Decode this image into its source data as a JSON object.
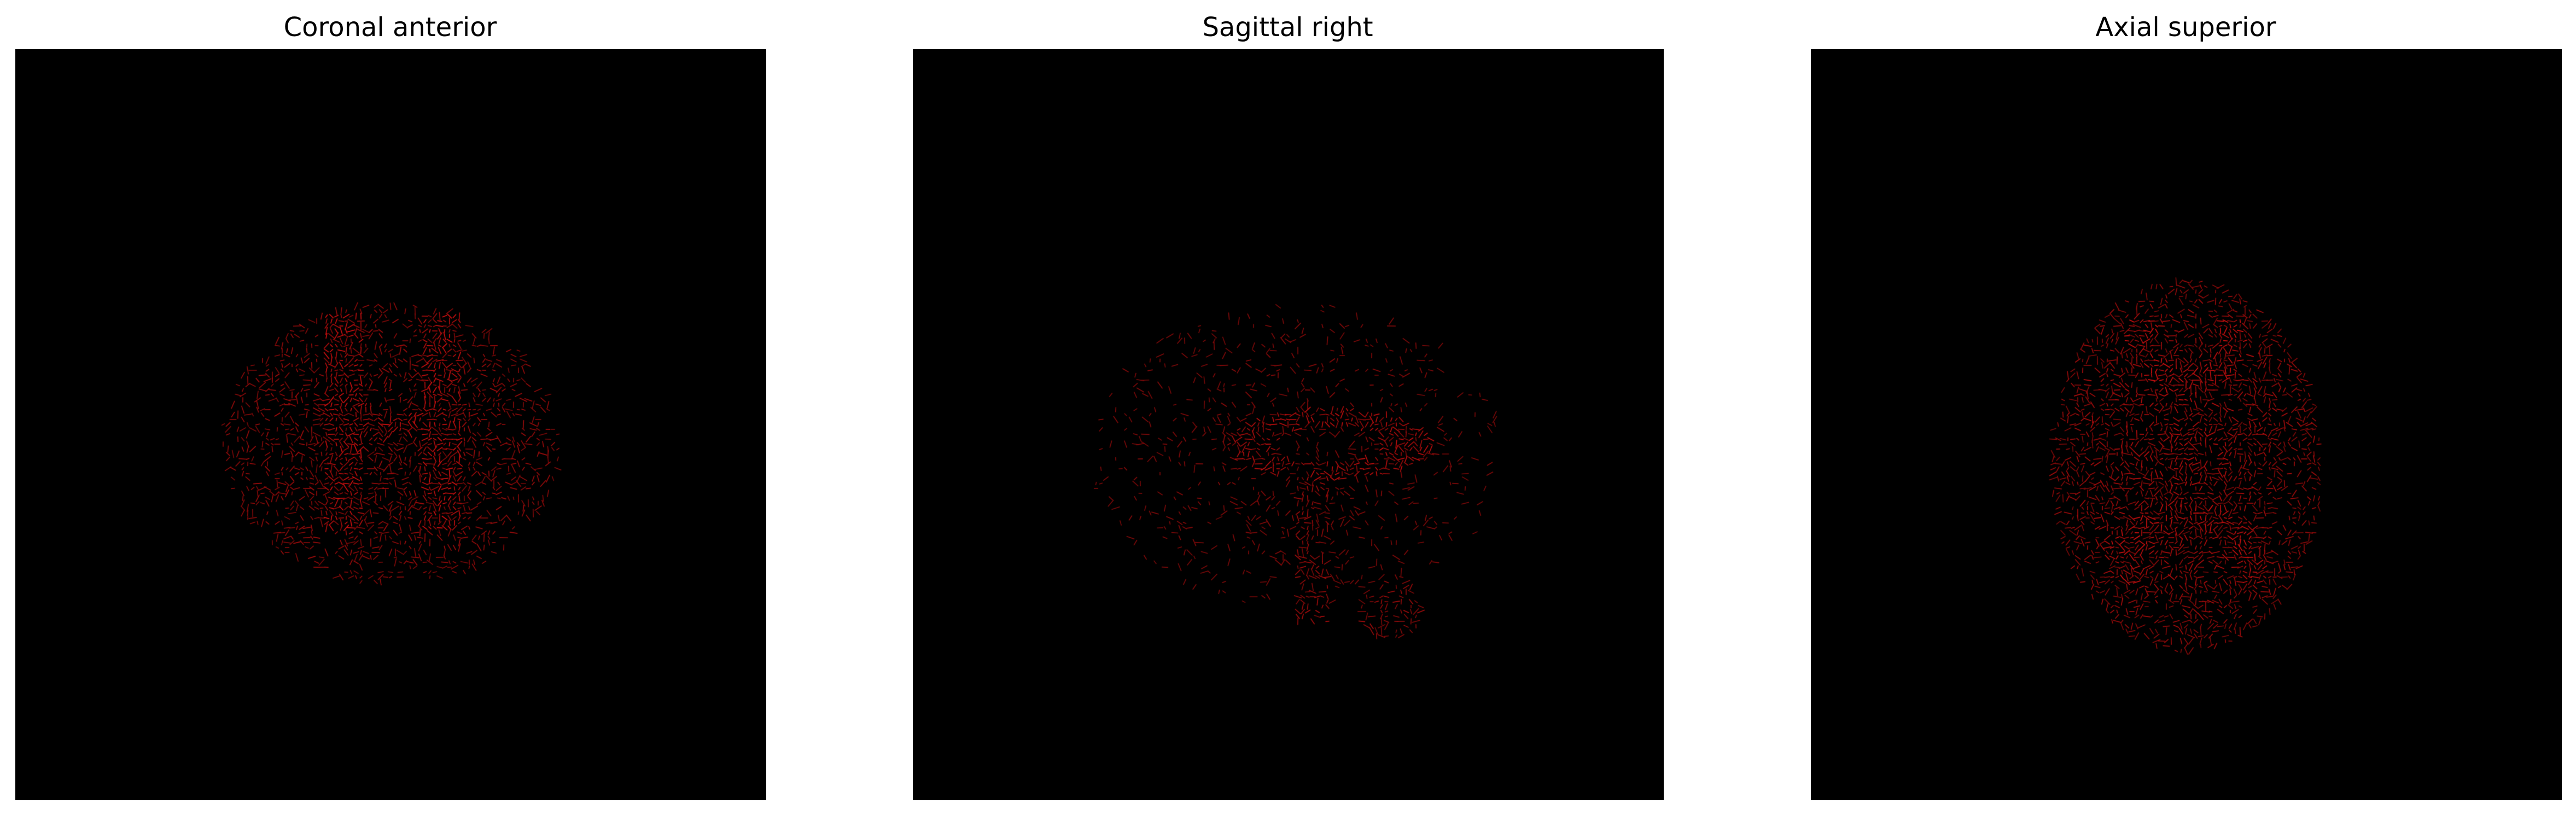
{
  "figure": {
    "background_color": "#ffffff",
    "image_background": "#000000",
    "fiber_color": "#c81414",
    "panels": [
      {
        "title": "Coronal anterior",
        "view": "coronal"
      },
      {
        "title": "Sagittal right",
        "view": "sagittal"
      },
      {
        "title": "Axial superior",
        "view": "axial"
      }
    ]
  }
}
